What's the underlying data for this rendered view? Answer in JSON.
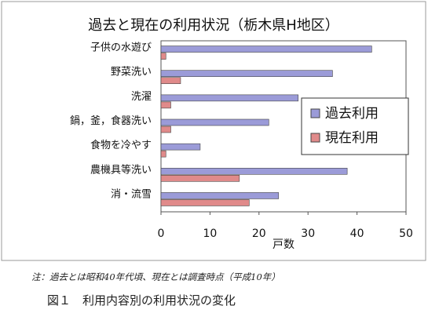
{
  "chart_data": {
    "type": "bar",
    "orientation": "horizontal",
    "title": "過去と現在の利用状況（栃木県H地区）",
    "categories": [
      "子供の水遊び",
      "野菜洗い",
      "洗濯",
      "鍋，釜，食器洗い",
      "食物を冷やす",
      "農機具等洗い",
      "消・流雪"
    ],
    "series": [
      {
        "name": "過去利用",
        "values": [
          43,
          35,
          28,
          22,
          8,
          38,
          24
        ],
        "color": "#9b9bd8"
      },
      {
        "name": "現在利用",
        "values": [
          1,
          4,
          2,
          2,
          1,
          16,
          18
        ],
        "color": "#e08a8a"
      }
    ],
    "xlabel": "戸数",
    "xlim": [
      0,
      50
    ],
    "xticks": [
      "0",
      "10",
      "20",
      "30",
      "40",
      "50"
    ],
    "grid": false,
    "legend_position": "right"
  },
  "note": "注：過去とは昭和40年代頃、現在とは調査時点（平成10年）",
  "caption": "図１　利用内容別の利用状況の変化"
}
